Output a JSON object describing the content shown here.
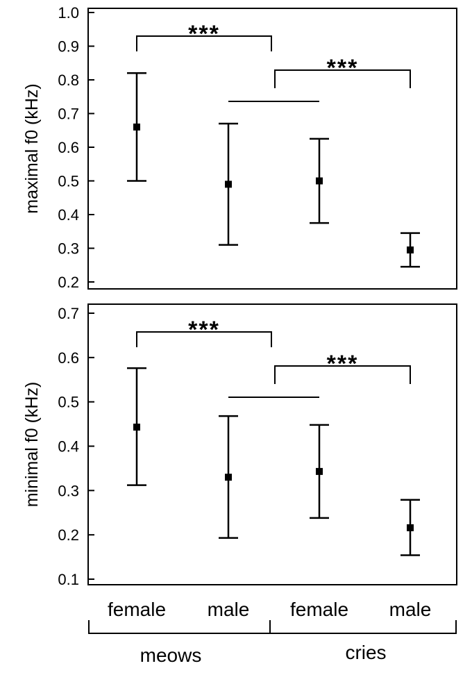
{
  "chart_data": [
    {
      "type": "scatter",
      "ylabel": "maximal f0 (kHz)",
      "ylim": [
        0.2,
        1.0
      ],
      "yticks": [
        "0.2",
        "0.3",
        "0.4",
        "0.5",
        "0.6",
        "0.7",
        "0.8",
        "0.9",
        "1.0"
      ],
      "categories": [
        "meows female",
        "meows male",
        "cries female",
        "cries male"
      ],
      "points": [
        {
          "category": "meows female",
          "mean": 0.66,
          "low": 0.5,
          "high": 0.82
        },
        {
          "category": "meows male",
          "mean": 0.49,
          "low": 0.31,
          "high": 0.67
        },
        {
          "category": "cries female",
          "mean": 0.5,
          "low": 0.375,
          "high": 0.625
        },
        {
          "category": "cries male",
          "mean": 0.295,
          "low": 0.245,
          "high": 0.345
        }
      ],
      "annotations": [
        {
          "type": "bracket",
          "from": "meows female",
          "to": "meows male",
          "label": "***"
        },
        {
          "type": "bracket",
          "from": "meows male",
          "to": "cries male",
          "label": "***"
        },
        {
          "type": "line",
          "from": "meows male",
          "to": "cries female"
        }
      ]
    },
    {
      "type": "scatter",
      "ylabel": "minimal f0 (kHz)",
      "ylim": [
        0.1,
        0.7
      ],
      "yticks": [
        "0.1",
        "0.2",
        "0.3",
        "0.4",
        "0.5",
        "0.6",
        "0.7"
      ],
      "categories": [
        "meows female",
        "meows male",
        "cries female",
        "cries male"
      ],
      "points": [
        {
          "category": "meows female",
          "mean": 0.443,
          "low": 0.312,
          "high": 0.576
        },
        {
          "category": "meows male",
          "mean": 0.33,
          "low": 0.193,
          "high": 0.468
        },
        {
          "category": "cries female",
          "mean": 0.343,
          "low": 0.238,
          "high": 0.448
        },
        {
          "category": "cries male",
          "mean": 0.216,
          "low": 0.154,
          "high": 0.279
        }
      ],
      "annotations": [
        {
          "type": "bracket",
          "from": "meows female",
          "to": "meows male",
          "label": "***"
        },
        {
          "type": "bracket",
          "from": "meows male",
          "to": "cries male",
          "label": "***"
        },
        {
          "type": "line",
          "from": "meows male",
          "to": "cries female"
        }
      ]
    }
  ],
  "x_axis": {
    "category_labels": [
      "female",
      "male",
      "female",
      "male"
    ],
    "groups": [
      "meows",
      "cries"
    ]
  },
  "colors": {
    "marks": "#000000",
    "background": "#ffffff"
  }
}
